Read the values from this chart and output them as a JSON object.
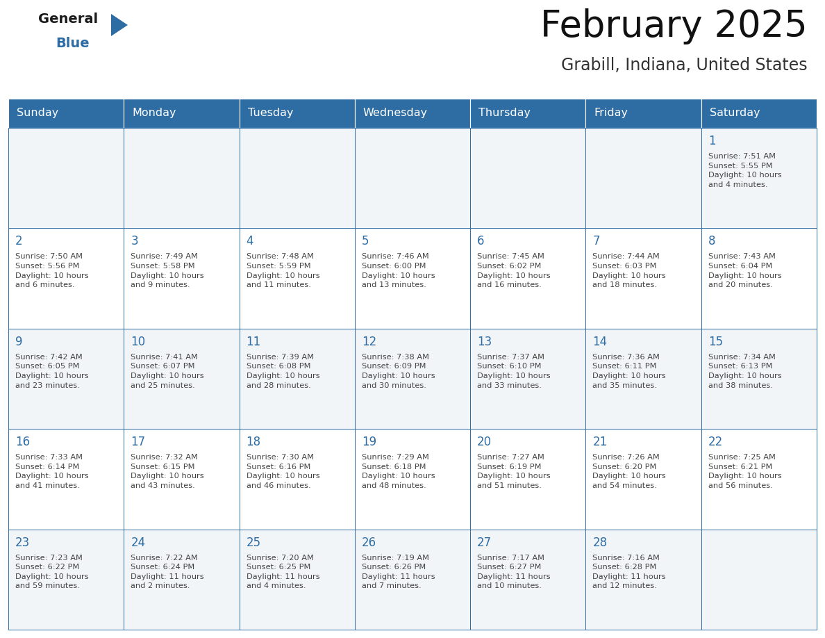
{
  "title": "February 2025",
  "subtitle": "Grabill, Indiana, United States",
  "header_bg": "#2E6DA4",
  "header_text_color": "#FFFFFF",
  "cell_bg_odd": "#F2F5F8",
  "cell_bg_even": "#FFFFFF",
  "border_color": "#2E6DA4",
  "day_number_color": "#2E6DA4",
  "text_color": "#444444",
  "logo_black": "#1a1a1a",
  "logo_blue": "#2E6DA4",
  "days_of_week": [
    "Sunday",
    "Monday",
    "Tuesday",
    "Wednesday",
    "Thursday",
    "Friday",
    "Saturday"
  ],
  "weeks": [
    [
      {
        "day": 0,
        "text": ""
      },
      {
        "day": 0,
        "text": ""
      },
      {
        "day": 0,
        "text": ""
      },
      {
        "day": 0,
        "text": ""
      },
      {
        "day": 0,
        "text": ""
      },
      {
        "day": 0,
        "text": ""
      },
      {
        "day": 1,
        "text": "Sunrise: 7:51 AM\nSunset: 5:55 PM\nDaylight: 10 hours\nand 4 minutes."
      }
    ],
    [
      {
        "day": 2,
        "text": "Sunrise: 7:50 AM\nSunset: 5:56 PM\nDaylight: 10 hours\nand 6 minutes."
      },
      {
        "day": 3,
        "text": "Sunrise: 7:49 AM\nSunset: 5:58 PM\nDaylight: 10 hours\nand 9 minutes."
      },
      {
        "day": 4,
        "text": "Sunrise: 7:48 AM\nSunset: 5:59 PM\nDaylight: 10 hours\nand 11 minutes."
      },
      {
        "day": 5,
        "text": "Sunrise: 7:46 AM\nSunset: 6:00 PM\nDaylight: 10 hours\nand 13 minutes."
      },
      {
        "day": 6,
        "text": "Sunrise: 7:45 AM\nSunset: 6:02 PM\nDaylight: 10 hours\nand 16 minutes."
      },
      {
        "day": 7,
        "text": "Sunrise: 7:44 AM\nSunset: 6:03 PM\nDaylight: 10 hours\nand 18 minutes."
      },
      {
        "day": 8,
        "text": "Sunrise: 7:43 AM\nSunset: 6:04 PM\nDaylight: 10 hours\nand 20 minutes."
      }
    ],
    [
      {
        "day": 9,
        "text": "Sunrise: 7:42 AM\nSunset: 6:05 PM\nDaylight: 10 hours\nand 23 minutes."
      },
      {
        "day": 10,
        "text": "Sunrise: 7:41 AM\nSunset: 6:07 PM\nDaylight: 10 hours\nand 25 minutes."
      },
      {
        "day": 11,
        "text": "Sunrise: 7:39 AM\nSunset: 6:08 PM\nDaylight: 10 hours\nand 28 minutes."
      },
      {
        "day": 12,
        "text": "Sunrise: 7:38 AM\nSunset: 6:09 PM\nDaylight: 10 hours\nand 30 minutes."
      },
      {
        "day": 13,
        "text": "Sunrise: 7:37 AM\nSunset: 6:10 PM\nDaylight: 10 hours\nand 33 minutes."
      },
      {
        "day": 14,
        "text": "Sunrise: 7:36 AM\nSunset: 6:11 PM\nDaylight: 10 hours\nand 35 minutes."
      },
      {
        "day": 15,
        "text": "Sunrise: 7:34 AM\nSunset: 6:13 PM\nDaylight: 10 hours\nand 38 minutes."
      }
    ],
    [
      {
        "day": 16,
        "text": "Sunrise: 7:33 AM\nSunset: 6:14 PM\nDaylight: 10 hours\nand 41 minutes."
      },
      {
        "day": 17,
        "text": "Sunrise: 7:32 AM\nSunset: 6:15 PM\nDaylight: 10 hours\nand 43 minutes."
      },
      {
        "day": 18,
        "text": "Sunrise: 7:30 AM\nSunset: 6:16 PM\nDaylight: 10 hours\nand 46 minutes."
      },
      {
        "day": 19,
        "text": "Sunrise: 7:29 AM\nSunset: 6:18 PM\nDaylight: 10 hours\nand 48 minutes."
      },
      {
        "day": 20,
        "text": "Sunrise: 7:27 AM\nSunset: 6:19 PM\nDaylight: 10 hours\nand 51 minutes."
      },
      {
        "day": 21,
        "text": "Sunrise: 7:26 AM\nSunset: 6:20 PM\nDaylight: 10 hours\nand 54 minutes."
      },
      {
        "day": 22,
        "text": "Sunrise: 7:25 AM\nSunset: 6:21 PM\nDaylight: 10 hours\nand 56 minutes."
      }
    ],
    [
      {
        "day": 23,
        "text": "Sunrise: 7:23 AM\nSunset: 6:22 PM\nDaylight: 10 hours\nand 59 minutes."
      },
      {
        "day": 24,
        "text": "Sunrise: 7:22 AM\nSunset: 6:24 PM\nDaylight: 11 hours\nand 2 minutes."
      },
      {
        "day": 25,
        "text": "Sunrise: 7:20 AM\nSunset: 6:25 PM\nDaylight: 11 hours\nand 4 minutes."
      },
      {
        "day": 26,
        "text": "Sunrise: 7:19 AM\nSunset: 6:26 PM\nDaylight: 11 hours\nand 7 minutes."
      },
      {
        "day": 27,
        "text": "Sunrise: 7:17 AM\nSunset: 6:27 PM\nDaylight: 11 hours\nand 10 minutes."
      },
      {
        "day": 28,
        "text": "Sunrise: 7:16 AM\nSunset: 6:28 PM\nDaylight: 11 hours\nand 12 minutes."
      },
      {
        "day": 0,
        "text": ""
      }
    ]
  ]
}
